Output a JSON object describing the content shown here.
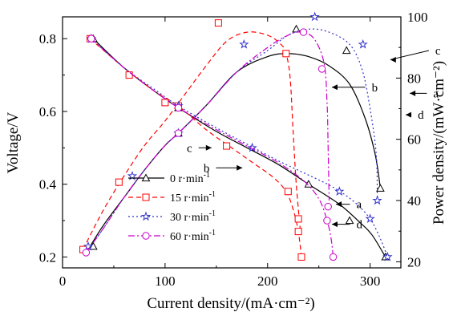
{
  "chart_data": {
    "type": "line",
    "xlabel": "Current density/(mA·cm⁻²)",
    "ylabel_left": "Voltage/V",
    "ylabel_right": "Power density/(mW·cm⁻²)",
    "xlim": [
      0,
      330
    ],
    "ylim_left": [
      0.17,
      0.86
    ],
    "ylim_right": [
      18,
      100
    ],
    "xticks": [
      0,
      100,
      200,
      300
    ],
    "yticks_left": [
      0.2,
      0.4,
      0.6,
      0.8
    ],
    "yticks_right": [
      20,
      40,
      60,
      80,
      100
    ],
    "grid": false,
    "legend_position": "lower-left",
    "series": [
      {
        "id": "0",
        "name": "0 r·min",
        "name_sup": "-1",
        "color": "#000000",
        "dash": "",
        "marker": "triangle",
        "voltage": [
          [
            30,
            0.8
          ],
          [
            60,
            0.72
          ],
          [
            90,
            0.655
          ],
          [
            113,
            0.61
          ],
          [
            150,
            0.545
          ],
          [
            180,
            0.5
          ],
          [
            210,
            0.455
          ],
          [
            240,
            0.4
          ],
          [
            270,
            0.345
          ],
          [
            290,
            0.295
          ],
          [
            302,
            0.26
          ],
          [
            315,
            0.2
          ]
        ],
        "voltage_markers": [
          [
            30,
            0.8
          ],
          [
            113,
            0.61
          ],
          [
            240,
            0.4
          ],
          [
            280,
            0.3
          ],
          [
            315,
            0.2
          ]
        ],
        "power": [
          [
            25,
            24
          ],
          [
            40,
            32
          ],
          [
            60,
            41
          ],
          [
            80,
            50
          ],
          [
            100,
            58
          ],
          [
            113,
            62
          ],
          [
            140,
            71
          ],
          [
            170,
            82
          ],
          [
            200,
            87
          ],
          [
            220,
            88
          ],
          [
            240,
            87
          ],
          [
            260,
            84
          ],
          [
            280,
            78
          ],
          [
            295,
            67
          ],
          [
            305,
            55
          ],
          [
            310,
            44
          ]
        ],
        "power_markers": [
          [
            30,
            25
          ],
          [
            113,
            62
          ],
          [
            228,
            96
          ],
          [
            277,
            89
          ],
          [
            310,
            44
          ]
        ]
      },
      {
        "id": "15",
        "name": "15 r·min",
        "name_sup": "-1",
        "color": "#ff0000",
        "dash": "6,4",
        "marker": "square",
        "voltage": [
          [
            27,
            0.8
          ],
          [
            60,
            0.72
          ],
          [
            90,
            0.655
          ],
          [
            113,
            0.615
          ],
          [
            140,
            0.55
          ],
          [
            165,
            0.5
          ],
          [
            185,
            0.46
          ],
          [
            205,
            0.42
          ],
          [
            218,
            0.38
          ],
          [
            225,
            0.33
          ],
          [
            230,
            0.27
          ],
          [
            233,
            0.2
          ]
        ],
        "voltage_markers": [
          [
            27,
            0.8
          ],
          [
            65,
            0.7
          ],
          [
            113,
            0.615
          ],
          [
            160,
            0.505
          ],
          [
            220,
            0.38
          ],
          [
            230,
            0.27
          ],
          [
            233,
            0.2
          ]
        ],
        "power": [
          [
            20,
            24
          ],
          [
            40,
            37
          ],
          [
            60,
            48
          ],
          [
            80,
            58
          ],
          [
            100,
            66
          ],
          [
            120,
            75
          ],
          [
            140,
            84
          ],
          [
            160,
            92
          ],
          [
            180,
            95
          ],
          [
            200,
            94
          ],
          [
            213,
            91
          ],
          [
            218,
            88
          ],
          [
            222,
            80
          ],
          [
            225,
            62
          ],
          [
            228,
            45
          ],
          [
            232,
            30
          ]
        ],
        "power_markers": [
          [
            20,
            24
          ],
          [
            55,
            46
          ],
          [
            100,
            72
          ],
          [
            152,
            98
          ],
          [
            218,
            88
          ],
          [
            230,
            34
          ]
        ]
      },
      {
        "id": "30",
        "name": "30 r·min",
        "name_sup": "-1",
        "color": "#3333cc",
        "dash": "2,3",
        "marker": "star",
        "voltage": [
          [
            28,
            0.8
          ],
          [
            60,
            0.72
          ],
          [
            90,
            0.66
          ],
          [
            113,
            0.615
          ],
          [
            150,
            0.555
          ],
          [
            180,
            0.51
          ],
          [
            210,
            0.465
          ],
          [
            240,
            0.425
          ],
          [
            265,
            0.39
          ],
          [
            285,
            0.35
          ],
          [
            300,
            0.305
          ],
          [
            310,
            0.25
          ],
          [
            317,
            0.2
          ]
        ],
        "voltage_markers": [
          [
            28,
            0.8
          ],
          [
            113,
            0.615
          ],
          [
            185,
            0.5
          ],
          [
            270,
            0.38
          ],
          [
            300,
            0.305
          ],
          [
            317,
            0.2
          ]
        ],
        "power": [
          [
            23,
            23
          ],
          [
            40,
            31
          ],
          [
            60,
            41
          ],
          [
            80,
            50
          ],
          [
            100,
            58
          ],
          [
            113,
            62
          ],
          [
            140,
            71
          ],
          [
            170,
            82
          ],
          [
            200,
            89
          ],
          [
            220,
            94
          ],
          [
            240,
            96
          ],
          [
            260,
            95
          ],
          [
            280,
            91
          ],
          [
            292,
            83
          ],
          [
            300,
            70
          ],
          [
            306,
            55
          ],
          [
            307,
            40
          ]
        ],
        "power_markers": [
          [
            25,
            25
          ],
          [
            68,
            48
          ],
          [
            113,
            62
          ],
          [
            177,
            91
          ],
          [
            246,
            100
          ],
          [
            293,
            91
          ],
          [
            307,
            40
          ]
        ]
      },
      {
        "id": "60",
        "name": "60 r·min",
        "name_sup": "-1",
        "color": "#cc00cc",
        "dash": "8,3,2,3",
        "marker": "circle",
        "voltage": [
          [
            28,
            0.8
          ],
          [
            60,
            0.72
          ],
          [
            90,
            0.655
          ],
          [
            113,
            0.61
          ],
          [
            150,
            0.55
          ],
          [
            180,
            0.505
          ],
          [
            210,
            0.46
          ],
          [
            235,
            0.41
          ],
          [
            250,
            0.36
          ],
          [
            258,
            0.3
          ],
          [
            262,
            0.25
          ],
          [
            264,
            0.2
          ]
        ],
        "voltage_markers": [
          [
            28,
            0.8
          ],
          [
            113,
            0.61
          ],
          [
            258,
            0.3
          ],
          [
            264,
            0.2
          ]
        ],
        "power": [
          [
            23,
            23
          ],
          [
            40,
            31
          ],
          [
            60,
            41
          ],
          [
            80,
            50
          ],
          [
            100,
            58
          ],
          [
            113,
            62
          ],
          [
            140,
            71
          ],
          [
            170,
            82
          ],
          [
            200,
            90
          ],
          [
            220,
            94
          ],
          [
            232,
            95
          ],
          [
            245,
            93
          ],
          [
            255,
            85
          ],
          [
            258,
            72
          ],
          [
            259,
            58
          ],
          [
            260,
            40
          ]
        ],
        "power_markers": [
          [
            23,
            23
          ],
          [
            113,
            62
          ],
          [
            235,
            95
          ],
          [
            253,
            83
          ],
          [
            259,
            38
          ]
        ]
      }
    ],
    "annotations": [
      {
        "label": "c",
        "tx": 128,
        "ty": 0.5,
        "ax": 150,
        "ay": 0.5,
        "dir": "right",
        "axis": "left"
      },
      {
        "label": "b",
        "tx": 145,
        "ty": 0.445,
        "ax": 180,
        "ay": 0.445,
        "dir": "left",
        "axis": "left"
      },
      {
        "label": "a",
        "tx": 285,
        "ty": 0.345,
        "ax": 262,
        "ay": 0.345,
        "dir": "left",
        "axis": "left"
      },
      {
        "label": "d",
        "tx": 285,
        "ty": 0.29,
        "ax": 258,
        "ay": 0.29,
        "dir": "left",
        "axis": "left"
      },
      {
        "label": "c",
        "tx": 362,
        "ty": 89,
        "ax": 315,
        "ay": 86,
        "dir": "right",
        "axis": "right"
      },
      {
        "label": "b",
        "tx": 300,
        "ty": 77,
        "ax": 258,
        "ay": 77,
        "dir": "right",
        "axis": "right"
      },
      {
        "label": "a",
        "tx": 360,
        "ty": 75,
        "ax": 334,
        "ay": 75,
        "dir": "left",
        "axis": "right"
      },
      {
        "label": "d",
        "tx": 345,
        "ty": 68,
        "ax": 330,
        "ay": 68,
        "dir": "right",
        "axis": "right"
      }
    ]
  }
}
